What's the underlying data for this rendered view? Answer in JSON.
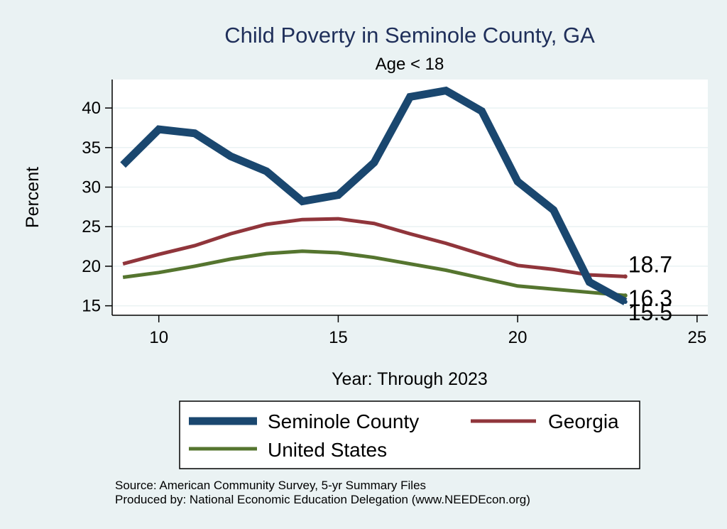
{
  "chart_data": {
    "type": "line",
    "title": "Child Poverty in Seminole County, GA",
    "subtitle": "Age < 18",
    "xlabel": "Year: Through 2023",
    "ylabel": "Percent",
    "xlim": [
      8.7,
      25.3
    ],
    "ylim": [
      13.8,
      43.6
    ],
    "xticks": [
      10,
      15,
      20,
      25
    ],
    "yticks": [
      15,
      20,
      25,
      30,
      35,
      40
    ],
    "grid": true,
    "legend_position": "bottom",
    "series": [
      {
        "name": "Seminole County",
        "color": "#1a476f",
        "x": [
          9,
          10,
          11,
          12,
          13,
          14,
          15,
          16,
          17,
          18,
          19,
          20,
          21,
          22,
          23
        ],
        "values": [
          32.8,
          37.3,
          36.8,
          33.9,
          32.0,
          28.2,
          29.0,
          33.1,
          41.4,
          42.2,
          39.6,
          30.7,
          27.1,
          18.0,
          15.5
        ],
        "end_label": "15.5"
      },
      {
        "name": "Georgia",
        "color": "#90353b",
        "x": [
          9,
          10,
          11,
          12,
          13,
          14,
          15,
          16,
          17,
          18,
          19,
          20,
          21,
          22,
          23
        ],
        "values": [
          20.3,
          21.5,
          22.6,
          24.1,
          25.3,
          25.9,
          26.0,
          25.4,
          24.1,
          22.9,
          21.5,
          20.1,
          19.6,
          18.9,
          18.7
        ],
        "end_label": "18.7"
      },
      {
        "name": "United States",
        "color": "#55752f",
        "x": [
          9,
          10,
          11,
          12,
          13,
          14,
          15,
          16,
          17,
          18,
          19,
          20,
          21,
          22,
          23
        ],
        "values": [
          18.6,
          19.2,
          20.0,
          20.9,
          21.6,
          21.9,
          21.7,
          21.1,
          20.3,
          19.5,
          18.5,
          17.5,
          17.1,
          16.7,
          16.3
        ],
        "end_label": "16.3"
      }
    ],
    "source_note": "Source: American Community Survey, 5-yr Summary Files",
    "producer_note": "Produced by: National Economic Education Delegation (www.NEEDEcon.org)"
  }
}
